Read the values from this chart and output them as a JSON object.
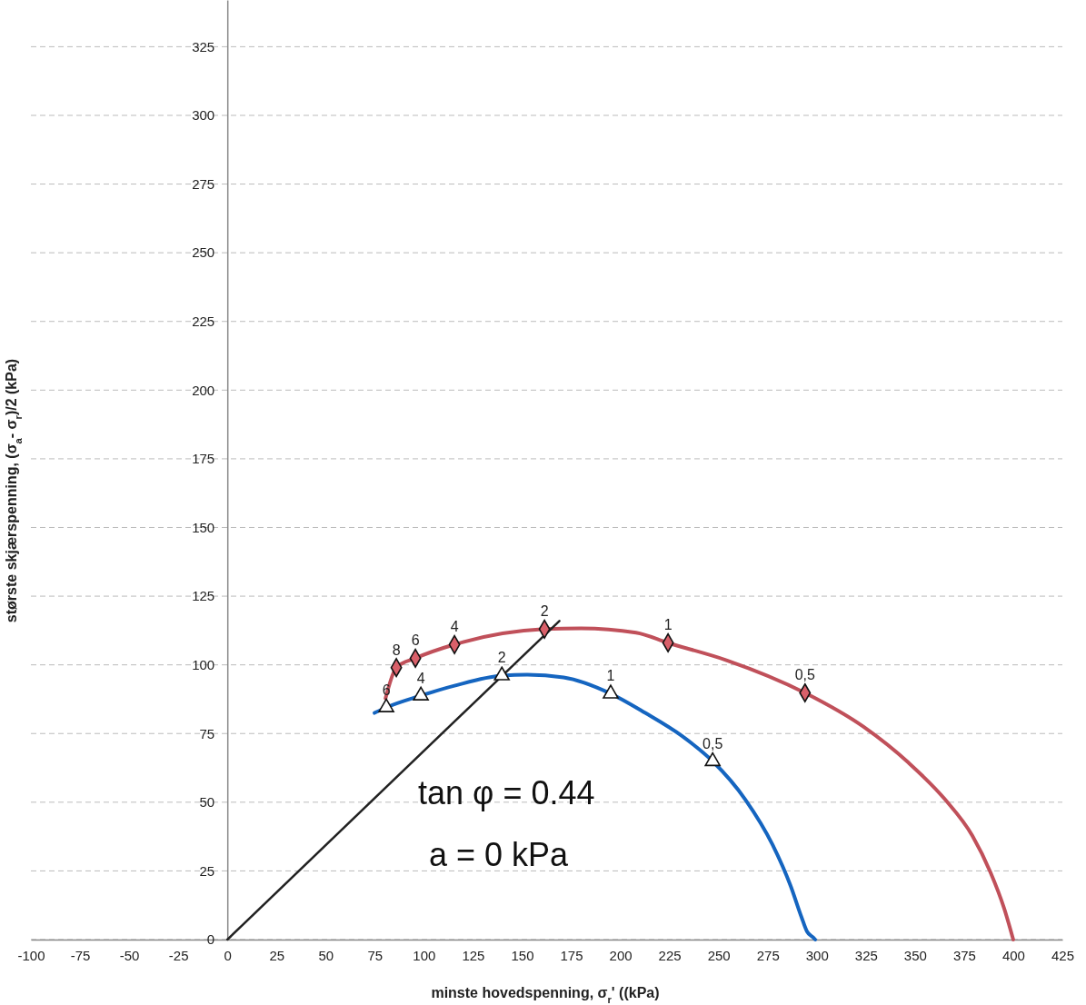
{
  "chart_data": {
    "type": "line",
    "xlabel": "minste hovedspenning, σ$_{r}$' ((kPa)",
    "ylabel": "største skjærspenning, (σ$_{a}$- σ$_{r}$)/2 (kPa)",
    "xlim": [
      -100,
      425
    ],
    "ylim": [
      0,
      342
    ],
    "xticks": [
      -100,
      -75,
      -50,
      -25,
      0,
      25,
      50,
      75,
      100,
      125,
      150,
      175,
      200,
      225,
      250,
      275,
      300,
      325,
      350,
      375,
      400,
      425
    ],
    "yticks": [
      0,
      25,
      50,
      75,
      100,
      125,
      150,
      175,
      200,
      225,
      250,
      275,
      300,
      325
    ],
    "grid": "y",
    "marker": "none",
    "line_style": "solid",
    "annotations": [
      "tan φ = 0.44",
      "a = 0 kPa",
      {
        "text": "8",
        "x": 86,
        "y": 99
      },
      {
        "text": "6",
        "x": 95.7,
        "y": 102.4
      },
      {
        "text": "4",
        "x": 115.6,
        "y": 107.4
      },
      {
        "text": "2",
        "x": 161.4,
        "y": 113
      },
      {
        "text": "1",
        "x": 224.3,
        "y": 108
      },
      {
        "text": "0,5",
        "x": 294,
        "y": 89.8
      },
      {
        "text": "6",
        "x": 80.9,
        "y": 84.5
      },
      {
        "text": "4",
        "x": 98.5,
        "y": 88.8
      },
      {
        "text": "2",
        "x": 139.7,
        "y": 96.1
      },
      {
        "text": "1",
        "x": 195.1,
        "y": 89.5
      },
      {
        "text": "0,5",
        "x": 247,
        "y": 64.9
      }
    ],
    "series": [
      {
        "color": "#c0505a",
        "x": [
          80.5,
          86,
          95.7,
          115.6,
          161.4,
          180,
          208,
          224.3,
          254,
          294,
          323.7,
          346.8,
          365.3,
          379.2,
          388.4,
          395.4,
          400
        ],
        "values": [
          87.8,
          99,
          102.4,
          107.4,
          113,
          113.3,
          111.7,
          108,
          101.7,
          89.8,
          77.5,
          64.3,
          51,
          37.8,
          24.5,
          11.3,
          0
        ]
      },
      {
        "color": "#1565c0",
        "x": [
          74.9,
          80.9,
          98.5,
          115.6,
          139.7,
          152.6,
          171.1,
          195.1,
          212.7,
          231.2,
          247,
          263.6,
          277.5,
          286.7,
          292.3,
          295,
          298.3,
          299.2
        ],
        "values": [
          82.5,
          84.5,
          88.8,
          92.4,
          96.1,
          96.4,
          95.4,
          89.5,
          82.5,
          74.2,
          64.9,
          51,
          34.5,
          19.5,
          8,
          3,
          0.7,
          0
        ]
      },
      {
        "color": "#222222",
        "x": [
          0,
          169
        ],
        "values": [
          0,
          116
        ]
      },
      {
        "type": "scatter",
        "marker": "diamond",
        "color": "#d9606a",
        "x": [
          86,
          95.7,
          115.6,
          161.4,
          224.3,
          294
        ],
        "values": [
          99,
          102.4,
          107.4,
          113,
          108,
          89.8
        ]
      },
      {
        "type": "scatter",
        "marker": "triangle",
        "color": "#ffffff",
        "x": [
          80.9,
          98.5,
          139.7,
          195.1,
          247
        ],
        "values": [
          84.5,
          88.8,
          96.1,
          89.5,
          64.9
        ]
      }
    ]
  }
}
